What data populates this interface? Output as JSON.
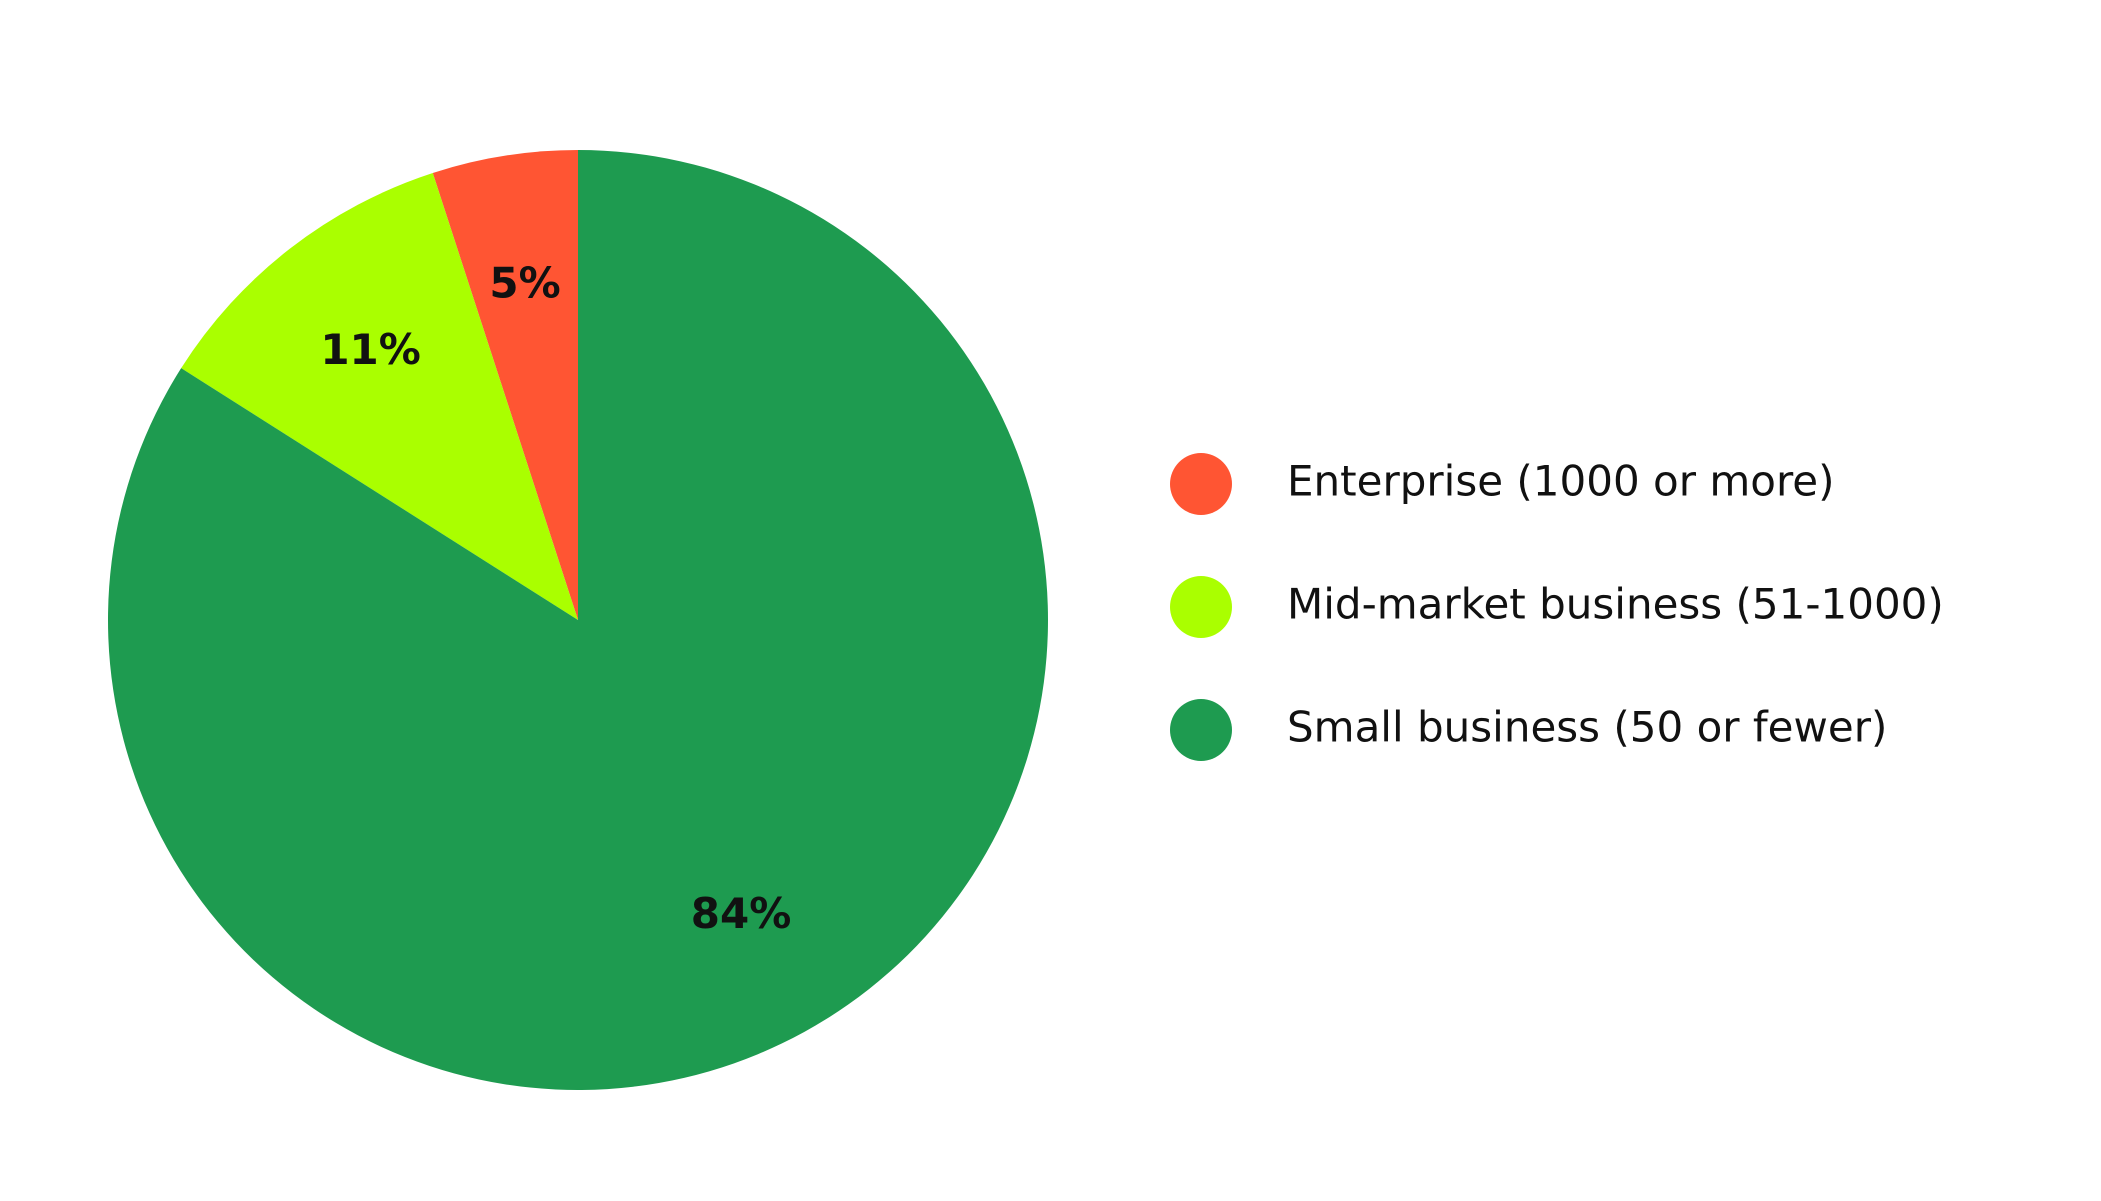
{
  "chart_data": {
    "type": "pie",
    "categories": [
      "Enterprise (1000 or more)",
      "Mid-market business (51-1000)",
      "Small business (50 or fewer)"
    ],
    "values": [
      5,
      11,
      84
    ],
    "value_labels": [
      "5%",
      "11%",
      "84%"
    ],
    "colors": [
      "#ff5533",
      "#aaff00",
      "#1e9b50"
    ],
    "start_angle": 0,
    "direction": "counterclockwise",
    "legend": "right"
  }
}
